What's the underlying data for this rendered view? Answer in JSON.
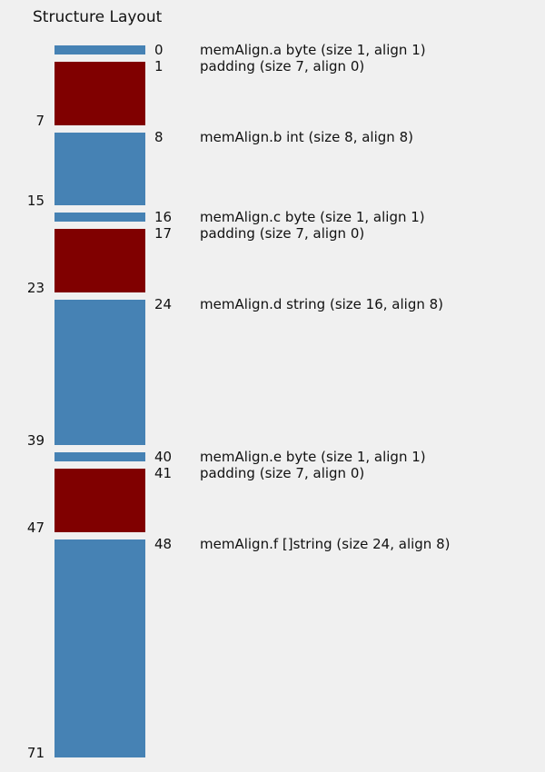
{
  "title": "Structure Layout",
  "colors": {
    "field": "#4682b4",
    "padding": "#800000",
    "background": "#f0f0f0"
  },
  "fields": [
    {
      "kind": "field",
      "offset": 0,
      "start_label": "0",
      "end_label": "",
      "label": "memAlign.a byte (size 1, align 1)"
    },
    {
      "kind": "padding",
      "offset": 1,
      "start_label": "1",
      "end_label": "7",
      "label": "padding (size 7, align 0)"
    },
    {
      "kind": "field",
      "offset": 8,
      "start_label": "8",
      "end_label": "15",
      "label": "memAlign.b int (size 8, align 8)"
    },
    {
      "kind": "field",
      "offset": 16,
      "start_label": "16",
      "end_label": "",
      "label": "memAlign.c byte (size 1, align 1)"
    },
    {
      "kind": "padding",
      "offset": 17,
      "start_label": "17",
      "end_label": "23",
      "label": "padding (size 7, align 0)"
    },
    {
      "kind": "field",
      "offset": 24,
      "start_label": "24",
      "end_label": "39",
      "label": "memAlign.d string (size 16, align 8)"
    },
    {
      "kind": "field",
      "offset": 40,
      "start_label": "40",
      "end_label": "",
      "label": "memAlign.e byte (size 1, align 1)"
    },
    {
      "kind": "padding",
      "offset": 41,
      "start_label": "41",
      "end_label": "47",
      "label": "padding (size 7, align 0)"
    },
    {
      "kind": "field",
      "offset": 48,
      "start_label": "48",
      "end_label": "71",
      "label": "memAlign.f []string (size 24, align 8)"
    }
  ]
}
